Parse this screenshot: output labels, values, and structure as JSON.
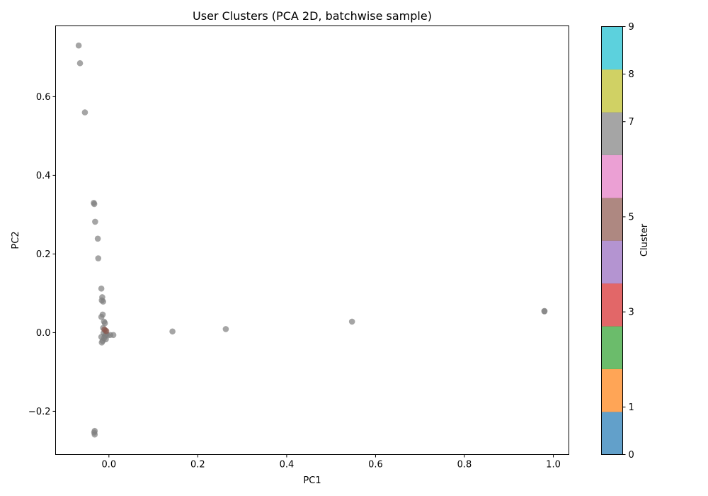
{
  "chart_data": {
    "type": "scatter",
    "title": "User Clusters (PCA 2D, batchwise sample)",
    "xlabel": "PC1",
    "ylabel": "PC2",
    "xlim": [
      -0.12,
      1.035
    ],
    "ylim": [
      -0.31,
      0.78
    ],
    "xticks": [
      0.0,
      0.2,
      0.4,
      0.6,
      0.8,
      1.0
    ],
    "xtick_labels": [
      "0.0",
      "0.2",
      "0.4",
      "0.6",
      "0.8",
      "1.0"
    ],
    "yticks": [
      -0.2,
      0.0,
      0.2,
      0.4,
      0.6
    ],
    "ytick_labels": [
      "−0.2",
      "0.0",
      "0.2",
      "0.4",
      "0.6"
    ],
    "grid": false,
    "point_alpha": 0.7,
    "colorbar": {
      "label": "Cluster",
      "range": [
        0,
        9
      ],
      "ticks": [
        0,
        1,
        3,
        5,
        7,
        8,
        9
      ],
      "tick_labels": [
        "0",
        "1",
        "3",
        "5",
        "7",
        "8",
        "9"
      ],
      "colors": [
        "#1f77b4",
        "#ff7f0e",
        "#2ca02c",
        "#d62728",
        "#9467bd",
        "#8c564b",
        "#e377c2",
        "#7f7f7f",
        "#bcbd22",
        "#17becf"
      ]
    },
    "series": [
      {
        "cluster": 7,
        "color": "#7f7f7f",
        "points": [
          [
            -0.068,
            0.73
          ],
          [
            -0.065,
            0.685
          ],
          [
            -0.054,
            0.56
          ],
          [
            -0.034,
            0.33
          ],
          [
            -0.033,
            0.327
          ],
          [
            -0.031,
            0.282
          ],
          [
            -0.025,
            0.239
          ],
          [
            -0.024,
            0.189
          ],
          [
            -0.017,
            0.112
          ],
          [
            -0.015,
            0.09
          ],
          [
            -0.016,
            0.082
          ],
          [
            -0.013,
            0.079
          ],
          [
            -0.014,
            0.046
          ],
          [
            -0.017,
            0.04
          ],
          [
            -0.011,
            0.028
          ],
          [
            -0.009,
            0.024
          ],
          [
            -0.013,
            0.012
          ],
          [
            -0.008,
            0.005
          ],
          [
            -0.012,
            -0.001
          ],
          [
            -0.006,
            -0.004
          ],
          [
            -0.009,
            -0.008
          ],
          [
            -0.003,
            -0.007
          ],
          [
            0.003,
            -0.006
          ],
          [
            0.01,
            -0.006
          ],
          [
            -0.017,
            -0.011
          ],
          [
            -0.011,
            -0.014
          ],
          [
            -0.007,
            -0.017
          ],
          [
            -0.014,
            -0.021
          ],
          [
            -0.016,
            -0.025
          ],
          [
            -0.032,
            -0.25
          ],
          [
            -0.033,
            -0.254
          ],
          [
            -0.032,
            -0.259
          ],
          [
            0.143,
            0.003
          ],
          [
            0.263,
            0.009
          ],
          [
            0.547,
            0.028
          ],
          [
            0.98,
            0.055
          ],
          [
            0.98,
            0.054
          ]
        ]
      },
      {
        "cluster": 5,
        "color": "#8c564b",
        "points": [
          [
            -0.01,
            0.008
          ],
          [
            -0.006,
            0.004
          ]
        ]
      }
    ]
  }
}
